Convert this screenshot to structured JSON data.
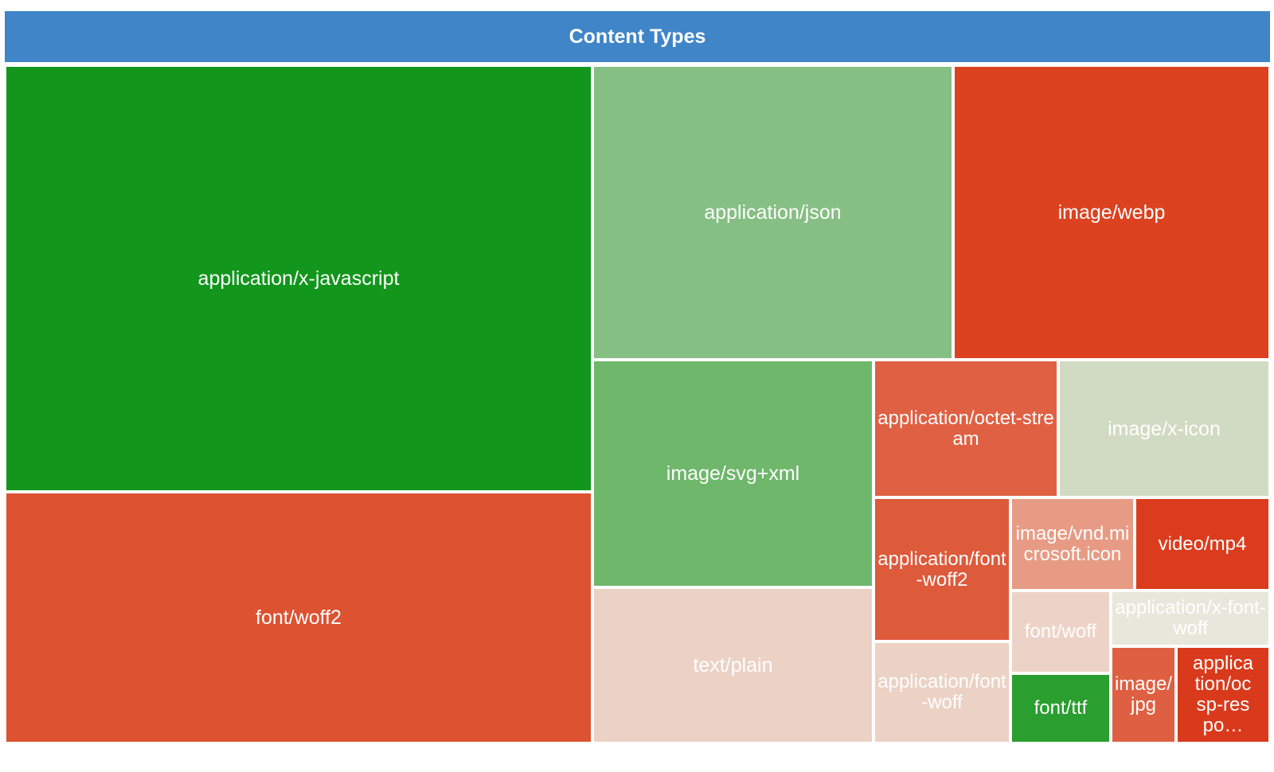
{
  "chart_data": {
    "type": "treemap",
    "title": "Content Types",
    "colors": {
      "title_bar": "#3f85c8",
      "border": "#ffffff",
      "label": "#ffffff"
    },
    "items": [
      {
        "label": "application/x-javascript",
        "color": "#12961c"
      },
      {
        "label": "font/woff2",
        "color": "#dd5230"
      },
      {
        "label": "application/json",
        "color": "#86bf83"
      },
      {
        "label": "image/webp",
        "color": "#dc421f"
      },
      {
        "label": "image/svg+xml",
        "color": "#6eb76b"
      },
      {
        "label": "text/plain",
        "color": "#ebd2c5"
      },
      {
        "label": "application/octet-stream",
        "color": "#e06043"
      },
      {
        "label": "image/x-icon",
        "color": "#d1dbc3"
      },
      {
        "label": "application/font-woff2",
        "color": "#dd5a3b"
      },
      {
        "label": "application/font-woff",
        "color": "#ebd2c5"
      },
      {
        "label": "image/vnd.microsoft.icon",
        "color": "#e89b84"
      },
      {
        "label": "video/mp4",
        "color": "#db3c1d"
      },
      {
        "label": "font/woff",
        "color": "#edd3c7"
      },
      {
        "label": "application/x-font-woff",
        "color": "#e7e7db"
      },
      {
        "label": "font/ttf",
        "color": "#2a9e2e"
      },
      {
        "label": "image/jpg",
        "color": "#df5f42"
      },
      {
        "label": "application/ocsp-respo…",
        "color": "#da3a1c"
      }
    ]
  }
}
